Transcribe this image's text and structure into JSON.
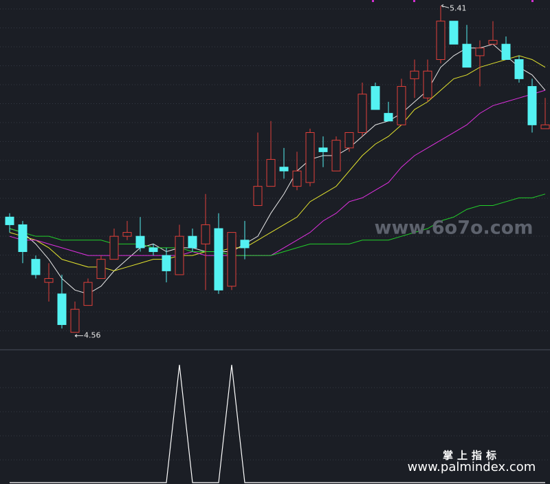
{
  "chart_data": [
    {
      "type": "candlestick",
      "open": [
        4.86,
        4.84,
        4.75,
        4.69,
        4.66,
        4.56,
        4.63,
        4.7,
        4.75,
        4.81,
        4.81,
        4.78,
        4.76,
        4.71,
        4.81,
        4.79,
        4.83,
        4.68,
        4.8,
        4.89,
        4.94,
        4.99,
        4.94,
        4.95,
        5.04,
        4.98,
        5.04,
        5.08,
        5.2,
        5.13,
        5.1,
        5.22,
        5.17,
        5.27,
        5.37,
        5.31,
        5.28,
        5.31,
        5.31,
        5.27,
        5.2,
        5.09
      ],
      "high": [
        4.87,
        4.85,
        4.76,
        4.74,
        4.71,
        4.64,
        4.7,
        4.76,
        4.83,
        4.85,
        4.86,
        4.79,
        4.78,
        4.84,
        4.83,
        4.92,
        4.87,
        4.82,
        4.85,
        5.08,
        5.11,
        5.04,
        5.03,
        5.09,
        5.07,
        5.07,
        5.08,
        5.21,
        5.21,
        5.16,
        5.22,
        5.27,
        5.27,
        5.41,
        5.37,
        5.36,
        5.32,
        5.37,
        5.33,
        5.28,
        5.22,
        5.17
      ],
      "low": [
        4.82,
        4.74,
        4.7,
        4.64,
        4.57,
        4.56,
        4.63,
        4.7,
        4.75,
        4.8,
        4.77,
        4.76,
        4.69,
        4.71,
        4.77,
        4.67,
        4.66,
        4.67,
        4.75,
        4.89,
        4.94,
        4.96,
        4.93,
        4.94,
        4.99,
        4.98,
        5.03,
        5.07,
        5.14,
        5.11,
        5.1,
        5.17,
        5.16,
        5.26,
        5.31,
        5.25,
        5.2,
        5.31,
        5.27,
        5.21,
        5.08,
        5.09
      ],
      "close": [
        4.84,
        4.77,
        4.71,
        4.7,
        4.58,
        4.62,
        4.69,
        4.75,
        4.81,
        4.82,
        4.78,
        4.77,
        4.72,
        4.81,
        4.78,
        4.84,
        4.67,
        4.82,
        4.78,
        4.94,
        5.01,
        4.98,
        4.98,
        5.08,
        5.03,
        5.06,
        5.08,
        5.18,
        5.14,
        5.11,
        5.2,
        5.24,
        5.24,
        5.37,
        5.31,
        5.25,
        5.3,
        5.32,
        5.27,
        5.22,
        5.1,
        5.1
      ],
      "up_color": "#e0403a",
      "down_color": "#54f2f2",
      "ylim": [
        4.52,
        5.425
      ],
      "high_label": "5.41",
      "low_label": "4.56",
      "series": [
        {
          "color": "#e8e8e8",
          "values": [
            4.83,
            4.82,
            4.79,
            4.75,
            4.7,
            4.67,
            4.66,
            4.68,
            4.72,
            4.75,
            4.78,
            4.79,
            4.77,
            4.78,
            4.78,
            4.77,
            4.77,
            4.77,
            4.79,
            4.81,
            4.87,
            4.92,
            4.98,
            5.01,
            5.02,
            5.02,
            5.04,
            5.07,
            5.1,
            5.11,
            5.13,
            5.16,
            5.19,
            5.25,
            5.28,
            5.3,
            5.3,
            5.31,
            5.28,
            5.25,
            5.23,
            5.19
          ]
        },
        {
          "color": "#e6e62e",
          "values": [
            4.82,
            4.81,
            4.8,
            4.78,
            4.75,
            4.74,
            4.73,
            4.73,
            4.72,
            4.73,
            4.74,
            4.75,
            4.75,
            4.76,
            4.76,
            4.77,
            4.77,
            4.78,
            4.78,
            4.8,
            4.82,
            4.84,
            4.86,
            4.9,
            4.92,
            4.94,
            4.98,
            5.02,
            5.05,
            5.07,
            5.1,
            5.14,
            5.16,
            5.19,
            5.22,
            5.23,
            5.25,
            5.26,
            5.27,
            5.28,
            5.27,
            5.25
          ]
        },
        {
          "color": "#e030e0",
          "values": [
            4.81,
            4.8,
            4.8,
            4.79,
            4.78,
            4.77,
            4.76,
            4.76,
            4.76,
            4.76,
            4.76,
            4.76,
            4.76,
            4.76,
            4.77,
            4.76,
            4.76,
            4.76,
            4.76,
            4.76,
            4.76,
            4.78,
            4.8,
            4.82,
            4.85,
            4.87,
            4.9,
            4.91,
            4.93,
            4.95,
            4.99,
            5.02,
            5.04,
            5.06,
            5.08,
            5.1,
            5.13,
            5.15,
            5.16,
            5.17,
            5.18,
            5.19
          ]
        },
        {
          "color": "#22d02a",
          "values": [
            4.83,
            4.82,
            4.81,
            4.81,
            4.8,
            4.8,
            4.8,
            4.8,
            4.79,
            4.79,
            4.79,
            4.78,
            4.78,
            4.78,
            4.77,
            4.77,
            4.77,
            4.76,
            4.76,
            4.76,
            4.76,
            4.77,
            4.78,
            4.79,
            4.79,
            4.79,
            4.79,
            4.8,
            4.8,
            4.8,
            4.81,
            4.82,
            4.83,
            4.85,
            4.86,
            4.88,
            4.89,
            4.89,
            4.9,
            4.91,
            4.91,
            4.92
          ]
        }
      ]
    },
    {
      "type": "line",
      "color": "#ffffff",
      "ylim": [
        0,
        1
      ],
      "values": [
        0,
        0,
        0,
        0,
        0,
        0,
        0,
        0,
        0,
        0,
        0,
        0,
        0,
        1,
        0,
        0,
        0,
        1,
        0,
        0,
        0,
        0,
        0,
        0,
        0,
        0,
        0,
        0,
        0,
        0,
        0,
        0,
        0,
        0,
        0,
        0,
        0,
        0,
        0,
        0,
        0,
        0
      ]
    }
  ],
  "watermarks": {
    "site": "www.6o7o.com",
    "brand": "掌上指标",
    "url": "www.palmindex.com"
  }
}
